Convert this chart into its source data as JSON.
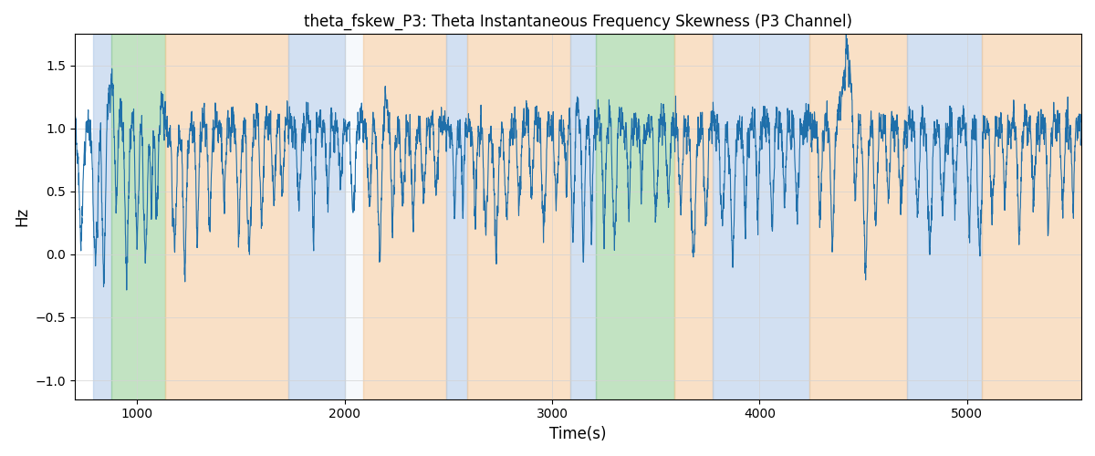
{
  "title": "theta_fskew_P3: Theta Instantaneous Frequency Skewness (P3 Channel)",
  "xlabel": "Time(s)",
  "ylabel": "Hz",
  "xlim": [
    700,
    5550
  ],
  "ylim": [
    -1.15,
    1.75
  ],
  "xticks": [
    1000,
    2000,
    3000,
    4000,
    5000
  ],
  "yticks": [
    -1.0,
    -0.5,
    0.0,
    0.5,
    1.0,
    1.5
  ],
  "line_color": "#1f6faa",
  "line_width": 0.8,
  "bg_regions": [
    {
      "xmin": 790,
      "xmax": 875,
      "color": "#adc8e8",
      "alpha": 0.55
    },
    {
      "xmin": 875,
      "xmax": 1135,
      "color": "#90cc90",
      "alpha": 0.55
    },
    {
      "xmin": 1135,
      "xmax": 1730,
      "color": "#f5c897",
      "alpha": 0.55
    },
    {
      "xmin": 1730,
      "xmax": 2000,
      "color": "#adc8e8",
      "alpha": 0.55
    },
    {
      "xmin": 2000,
      "xmax": 2090,
      "color": "#adc8e8",
      "alpha": 0.1
    },
    {
      "xmin": 2090,
      "xmax": 2490,
      "color": "#f5c897",
      "alpha": 0.55
    },
    {
      "xmin": 2490,
      "xmax": 2590,
      "color": "#adc8e8",
      "alpha": 0.55
    },
    {
      "xmin": 2590,
      "xmax": 3090,
      "color": "#f5c897",
      "alpha": 0.55
    },
    {
      "xmin": 3090,
      "xmax": 3210,
      "color": "#adc8e8",
      "alpha": 0.55
    },
    {
      "xmin": 3210,
      "xmax": 3590,
      "color": "#90cc90",
      "alpha": 0.55
    },
    {
      "xmin": 3590,
      "xmax": 3775,
      "color": "#f5c897",
      "alpha": 0.55
    },
    {
      "xmin": 3775,
      "xmax": 4240,
      "color": "#adc8e8",
      "alpha": 0.55
    },
    {
      "xmin": 4240,
      "xmax": 4710,
      "color": "#f5c897",
      "alpha": 0.55
    },
    {
      "xmin": 4710,
      "xmax": 5070,
      "color": "#adc8e8",
      "alpha": 0.55
    },
    {
      "xmin": 5070,
      "xmax": 5550,
      "color": "#f5c897",
      "alpha": 0.55
    }
  ],
  "seed": 42,
  "n_points": 4850,
  "t_start": 700,
  "t_end": 5550
}
